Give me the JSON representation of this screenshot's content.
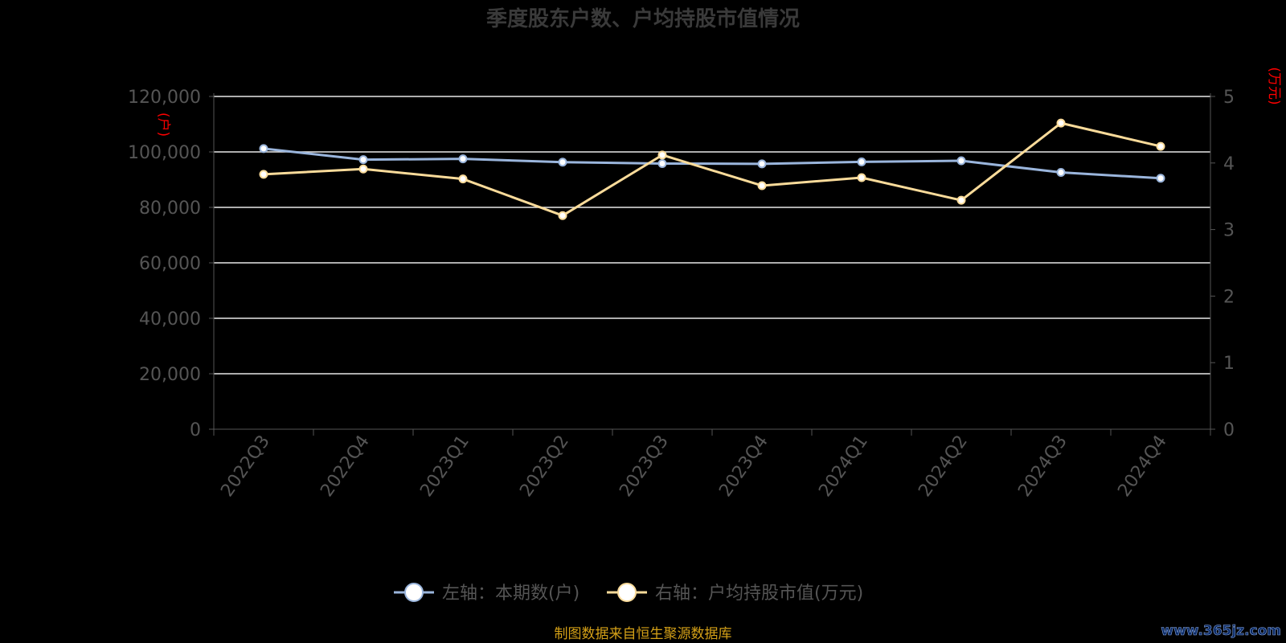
{
  "chart_data": {
    "type": "line",
    "title": "季度股东户数、户均持股市值情况",
    "categories": [
      "2022Q3",
      "2022Q4",
      "2023Q1",
      "2023Q2",
      "2023Q3",
      "2023Q4",
      "2024Q1",
      "2024Q2",
      "2024Q3",
      "2024Q4"
    ],
    "left_axis": {
      "unit_label": "(户)",
      "min": 0,
      "max": 120000,
      "ticks": [
        "0",
        "20,000",
        "40,000",
        "60,000",
        "80,000",
        "100,000",
        "120,000"
      ],
      "tick_values": [
        0,
        20000,
        40000,
        60000,
        80000,
        100000,
        120000
      ]
    },
    "right_axis": {
      "unit_label": "(万元)",
      "min": 0,
      "max": 5,
      "ticks": [
        "0",
        "1",
        "2",
        "3",
        "4",
        "5"
      ],
      "tick_values": [
        0,
        1,
        2,
        3,
        4,
        5
      ]
    },
    "series": [
      {
        "name": "左轴：本期数(户)",
        "axis": "left",
        "color": "#9ab5dc",
        "values": [
          101200,
          97200,
          97500,
          96300,
          95800,
          95700,
          96400,
          96800,
          92600,
          90500
        ]
      },
      {
        "name": "右轴：户均持股市值(万元)",
        "axis": "right",
        "color": "#fadb9a",
        "values": [
          3.83,
          3.91,
          3.76,
          3.21,
          4.12,
          3.66,
          3.78,
          3.44,
          4.6,
          4.25
        ]
      }
    ],
    "grid": true,
    "legend_position": "bottom"
  },
  "source_note": "制图数据来自恒生聚源数据库",
  "watermark": "www.365jz.com"
}
